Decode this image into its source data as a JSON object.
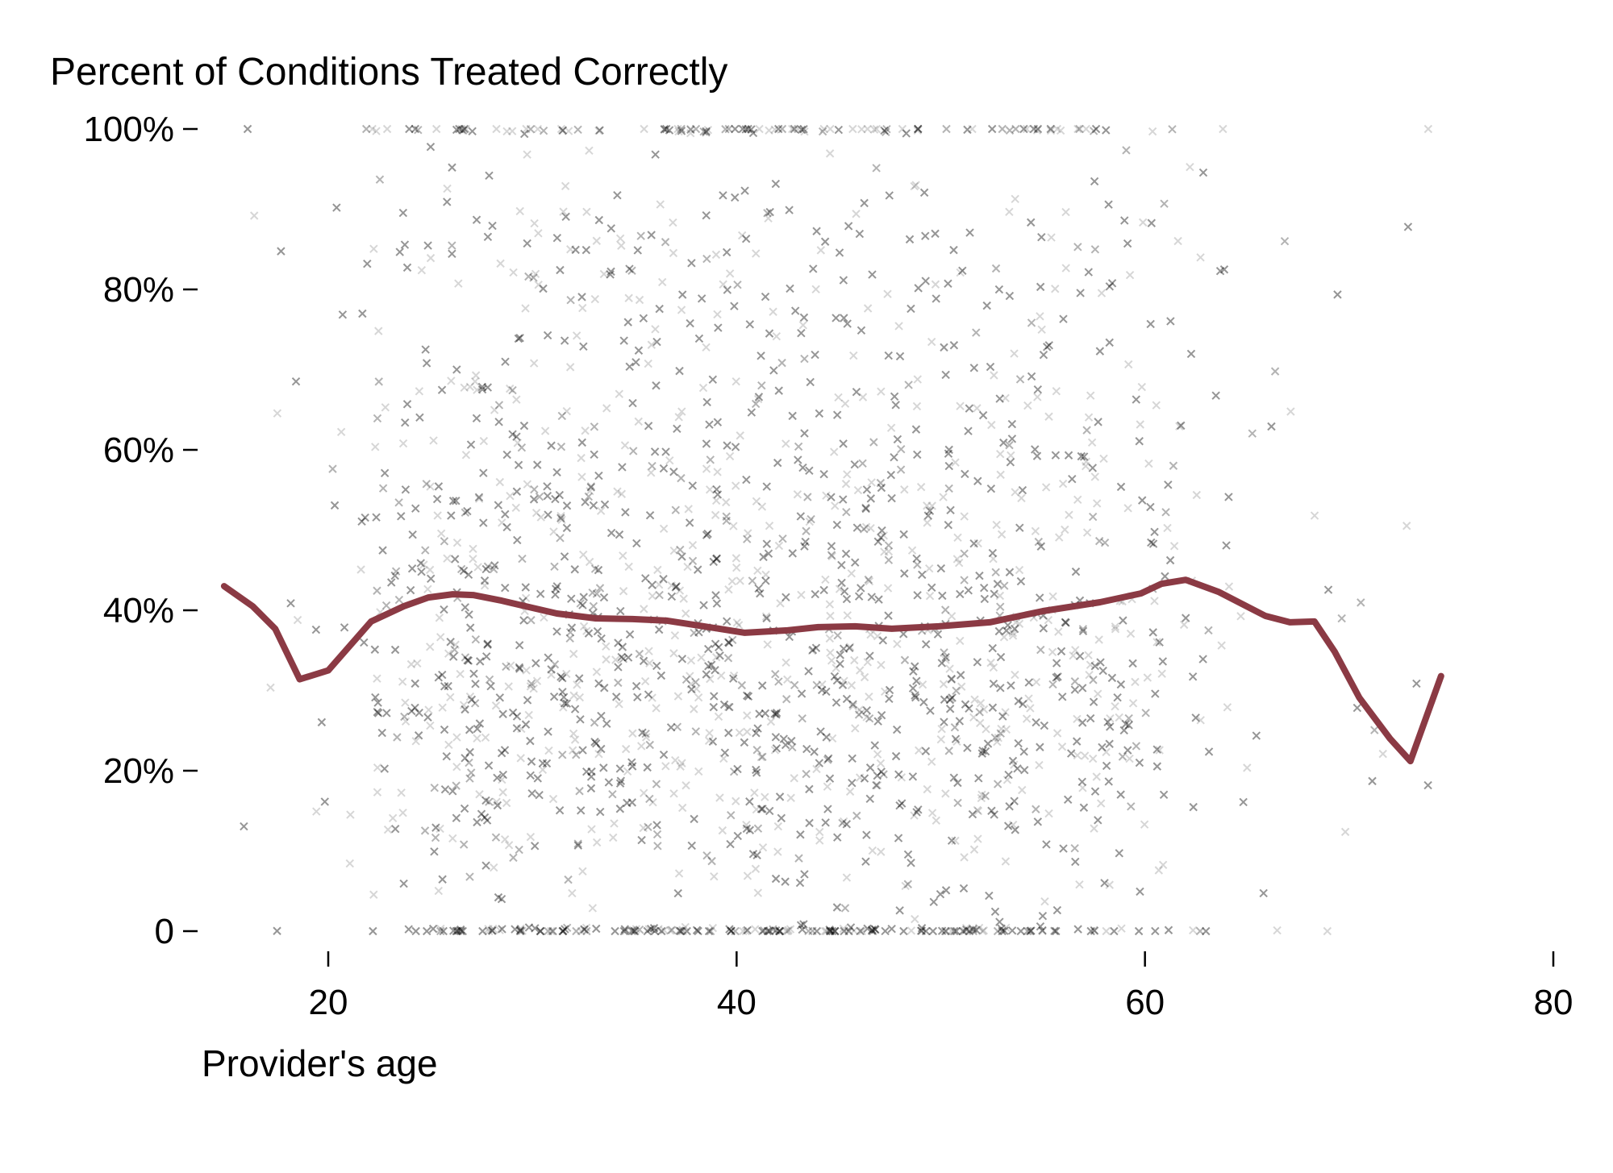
{
  "chart_data": {
    "type": "scatter",
    "title": "Percent of Conditions Treated Correctly",
    "xlabel": "Provider's age",
    "ylabel": "",
    "xlim": [
      12,
      81
    ],
    "ylim": [
      0,
      100
    ],
    "x_ticks": [
      20,
      40,
      60,
      80
    ],
    "x_tick_labels": [
      "20",
      "40",
      "60",
      "80"
    ],
    "y_ticks": [
      0,
      20,
      40,
      60,
      80,
      100
    ],
    "y_tick_labels": [
      "0",
      "20%",
      "40%",
      "60%",
      "80%",
      "100%"
    ],
    "grid": false,
    "legend": "none",
    "scatter": {
      "description_marker": "x",
      "color": "#000000",
      "density_by_age": [
        [
          15,
          0.1
        ],
        [
          17,
          0.25
        ],
        [
          19,
          0.5
        ],
        [
          21,
          1.0
        ],
        [
          22,
          2.5
        ],
        [
          23,
          5.5
        ],
        [
          25,
          8.0
        ],
        [
          30,
          9.0
        ],
        [
          40,
          9.0
        ],
        [
          50,
          8.5
        ],
        [
          55,
          7.5
        ],
        [
          58,
          6.0
        ],
        [
          60,
          4.0
        ],
        [
          62,
          2.0
        ],
        [
          64,
          1.2
        ],
        [
          66,
          0.7
        ],
        [
          70,
          0.4
        ],
        [
          75,
          0.2
        ]
      ],
      "y_value_clusters": [
        {
          "value": 0,
          "weight": 0.09
        },
        {
          "value": 100,
          "weight": 0.05
        },
        {
          "value": 15,
          "weight": 0.16
        },
        {
          "value": 30,
          "weight": 0.26
        },
        {
          "value": 44,
          "weight": 0.16
        },
        {
          "value": 57,
          "weight": 0.13
        },
        {
          "value": 72,
          "weight": 0.08
        },
        {
          "value": 87,
          "weight": 0.07
        }
      ]
    },
    "series": [
      {
        "type": "line",
        "color": "#8b3a44",
        "x": [
          14.9,
          16.3,
          17.4,
          18.6,
          20.0,
          22.1,
          23.7,
          24.9,
          26.1,
          27.1,
          28.5,
          30.0,
          31.2,
          33.1,
          34.9,
          36.6,
          38.4,
          40.4,
          42.5,
          44.0,
          45.8,
          47.6,
          49.9,
          52.4,
          55.0,
          57.8,
          59.8,
          60.8,
          62.0,
          63.6,
          65.9,
          67.1,
          68.3,
          69.3,
          70.5,
          72.0,
          73.0,
          74.5
        ],
        "y": [
          43.0,
          40.5,
          37.7,
          31.4,
          32.5,
          38.6,
          40.5,
          41.6,
          42.0,
          41.9,
          41.2,
          40.3,
          39.6,
          39.0,
          38.9,
          38.7,
          38.0,
          37.2,
          37.5,
          37.9,
          38.0,
          37.7,
          38.0,
          38.5,
          39.9,
          41.0,
          42.1,
          43.3,
          43.8,
          42.3,
          39.3,
          38.5,
          38.6,
          34.8,
          29.1,
          24.0,
          21.2,
          31.8
        ]
      }
    ]
  }
}
